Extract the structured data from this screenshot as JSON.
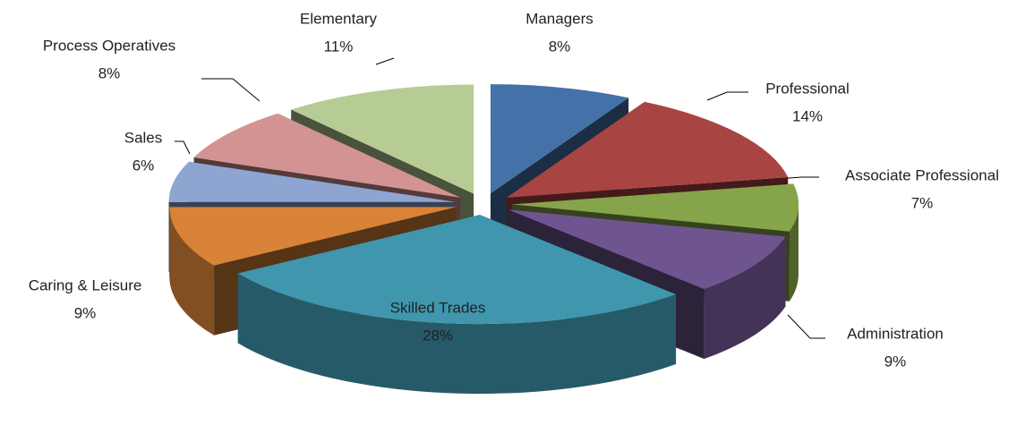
{
  "chart_data": {
    "type": "pie",
    "categories": [
      "Managers",
      "Professional",
      "Associate Professional",
      "Administration",
      "Skilled Trades",
      "Caring & Leisure",
      "Sales",
      "Process Operatives",
      "Elementary"
    ],
    "values": [
      8,
      14,
      7,
      9,
      28,
      9,
      6,
      8,
      11
    ],
    "value_labels": [
      "8%",
      "14%",
      "7%",
      "9%",
      "28%",
      "9%",
      "6%",
      "8%",
      "11%"
    ],
    "colors": [
      "#4472a8",
      "#a84442",
      "#86a44a",
      "#6f5590",
      "#3f96ad",
      "#d88338",
      "#8ea5d2",
      "#d39393",
      "#b7cc94"
    ]
  }
}
